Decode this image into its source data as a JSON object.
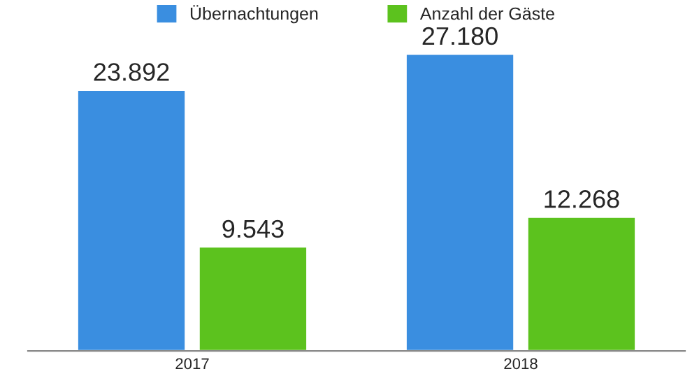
{
  "chart_data": {
    "type": "bar",
    "categories": [
      "2017",
      "2018"
    ],
    "series": [
      {
        "name": "Übernachtungen",
        "color": "#3a8ee0",
        "values": [
          23892,
          27180
        ],
        "value_labels": [
          "23.892",
          "27.180"
        ]
      },
      {
        "name": "Anzahl der Gäste",
        "color": "#5cc21e",
        "values": [
          9543,
          12268
        ],
        "value_labels": [
          "9.543",
          "12.268"
        ]
      }
    ],
    "tick_labels": "x",
    "legend": "top",
    "grid": false
  }
}
